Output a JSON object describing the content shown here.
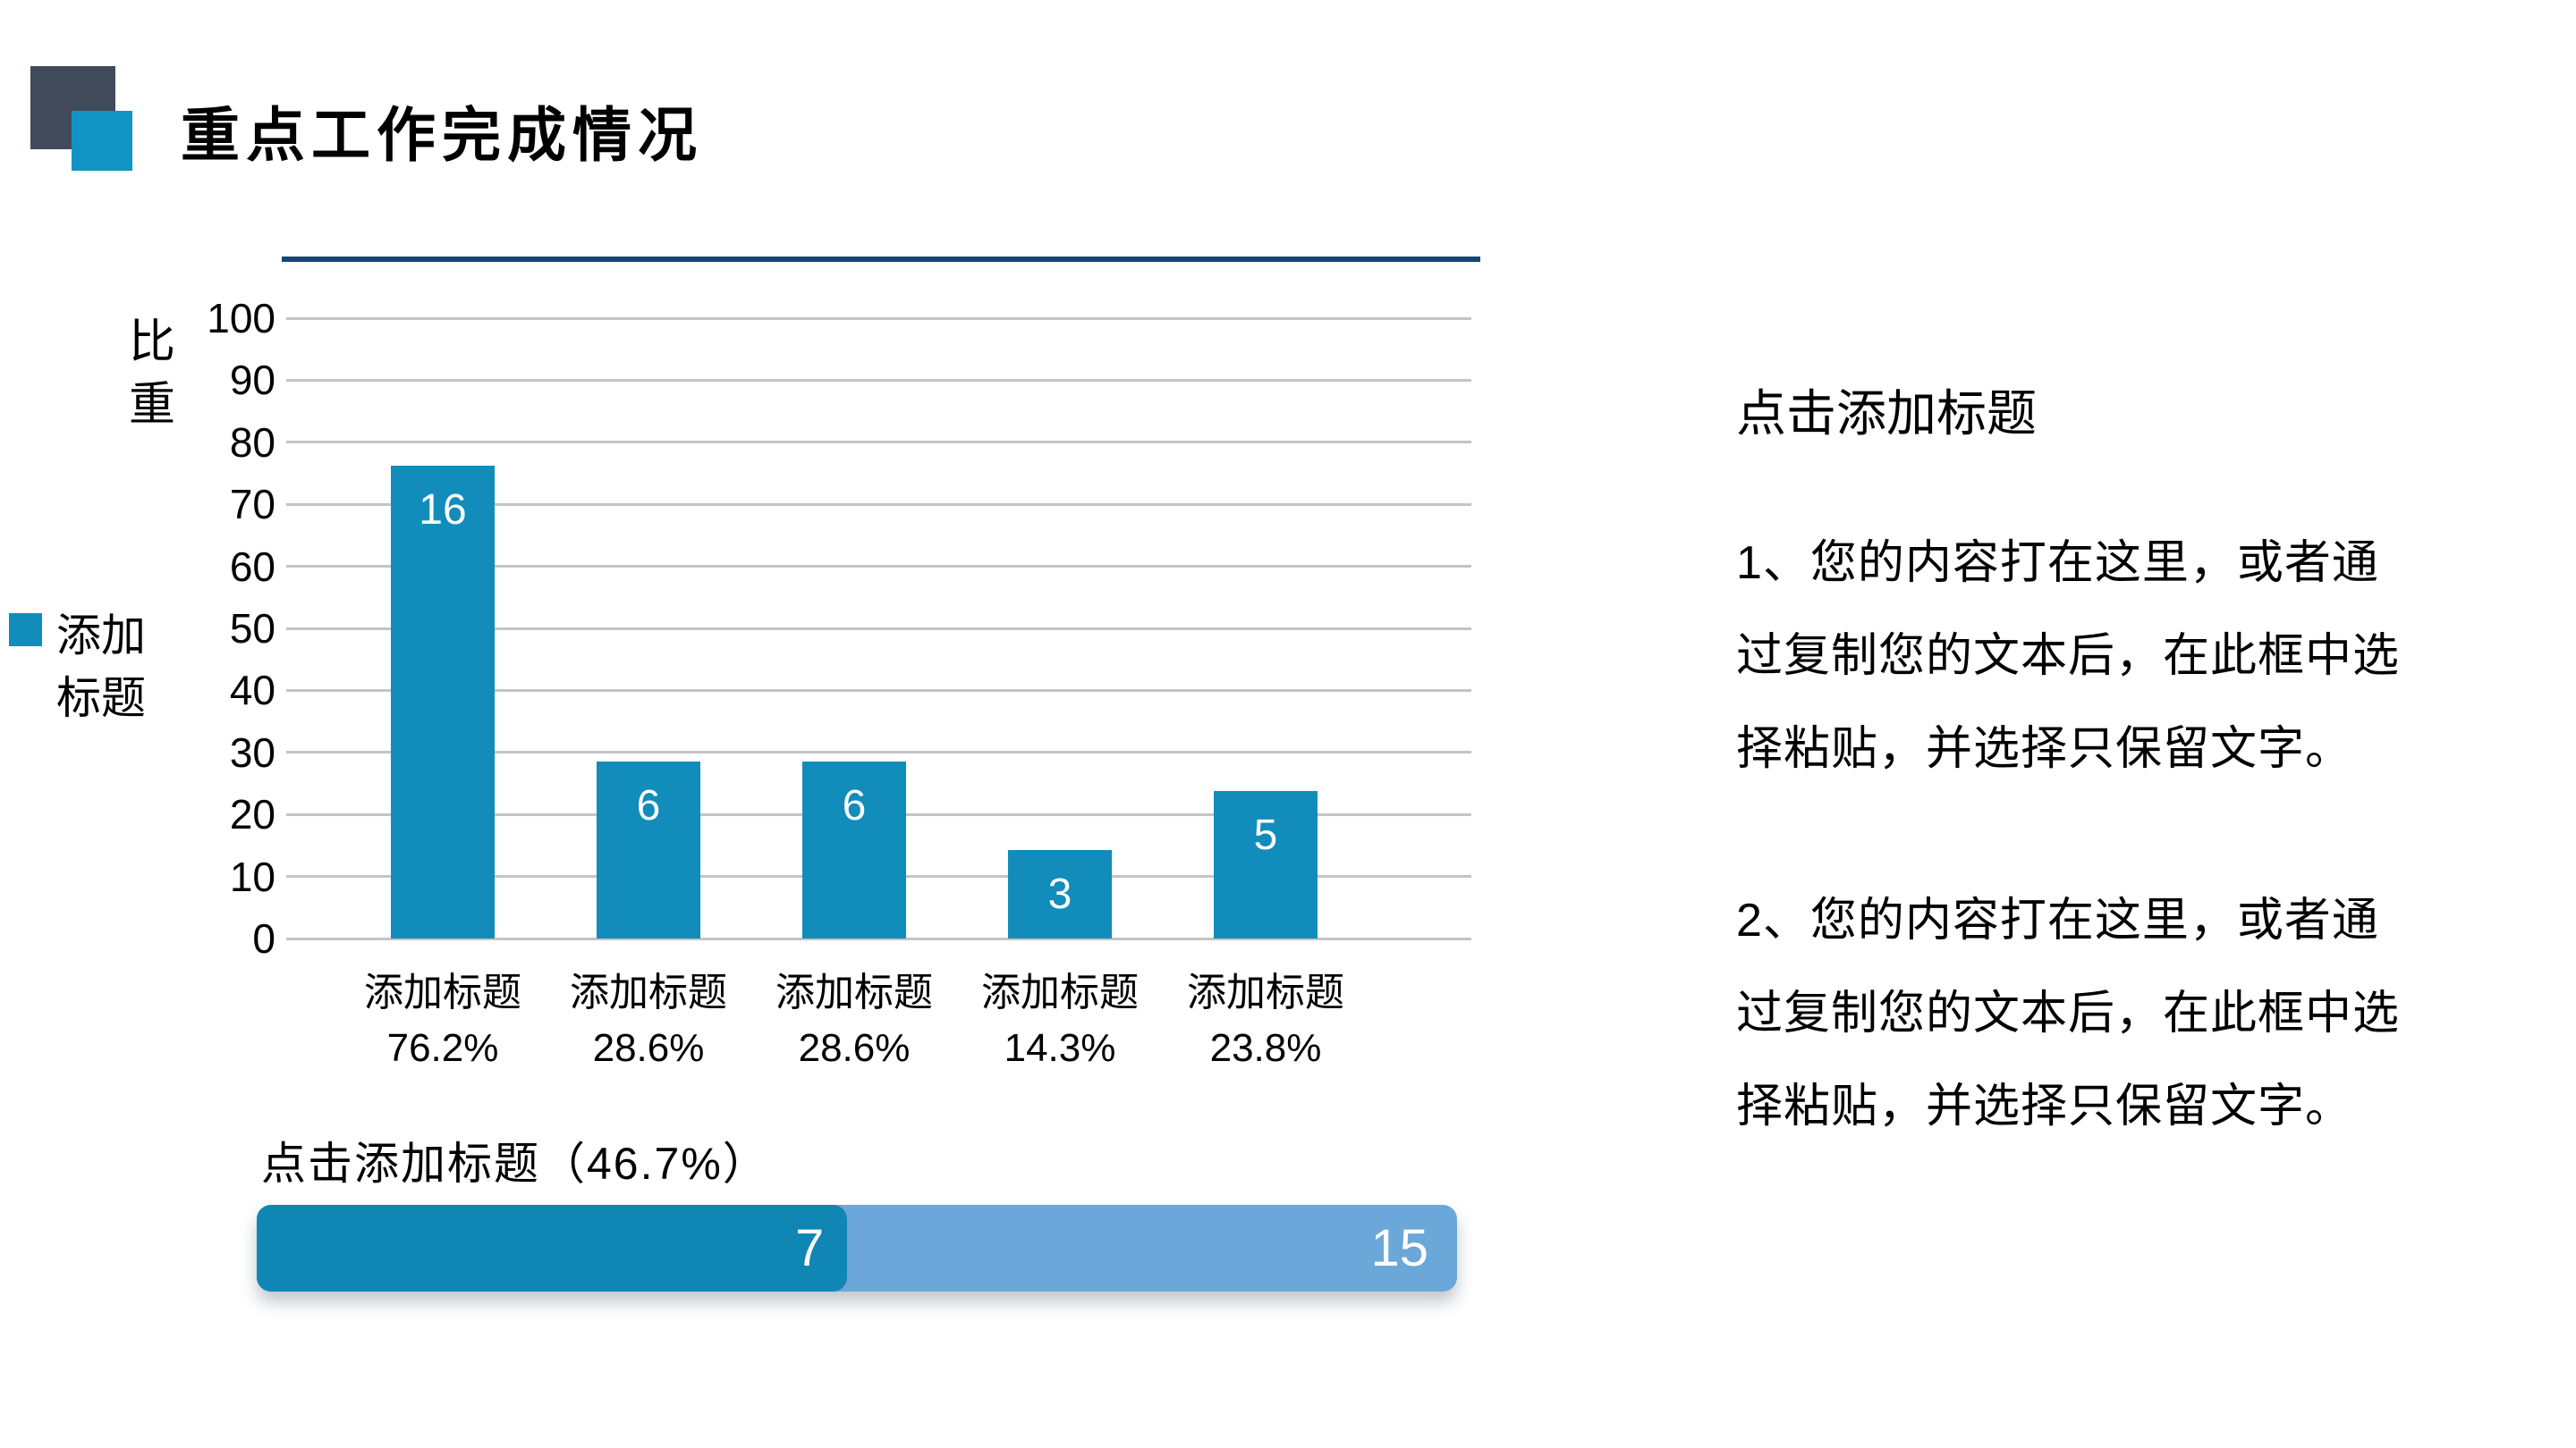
{
  "header": {
    "title": "重点工作完成情况"
  },
  "colors": {
    "accent_square_back": "#414A5B",
    "accent_square_front": "#1094C4",
    "divider_navy": "#17476E",
    "bar_teal": "#118CBB",
    "progress_dark": "#0F86B4",
    "progress_light": "#6BA7D8",
    "gridline": "#C4C4C4",
    "text": "#000000"
  },
  "chart_data": {
    "type": "bar",
    "title": "",
    "xlabel": "",
    "ylabel": "比重",
    "ylim": [
      0,
      100
    ],
    "yticks": [
      0,
      10,
      20,
      30,
      40,
      50,
      60,
      70,
      80,
      90,
      100
    ],
    "grid": true,
    "legend_position": "left",
    "legend_label": "添加\n标题",
    "categories": [
      "添加标题",
      "添加标题",
      "添加标题",
      "添加标题",
      "添加标题"
    ],
    "category_percent_labels": [
      "76.2%",
      "28.6%",
      "28.6%",
      "14.3%",
      "23.8%"
    ],
    "series": [
      {
        "name": "添加标题",
        "values": [
          16,
          6,
          6,
          3,
          5
        ],
        "bar_labels": [
          "16",
          "6",
          "6",
          "3",
          "5"
        ],
        "heights_pct": [
          76.2,
          28.6,
          28.6,
          14.3,
          23.8
        ]
      }
    ]
  },
  "progress": {
    "title": "点击添加标题（46.7%）",
    "percent_label": "46.7%",
    "segments": [
      {
        "label": "7",
        "value": 7,
        "color": "#0F86B4",
        "width_pct": 49.2
      },
      {
        "label": "15",
        "value": 15,
        "color": "#6BA7D8",
        "width_pct": 100
      }
    ]
  },
  "right_panel": {
    "heading": "点击添加标题",
    "paragraphs": [
      "1、您的内容打在这里，或者通\n过复制您的文本后，在此框中选\n择粘贴，并选择只保留文字。",
      "2、您的内容打在这里，或者通\n过复制您的文本后，在此框中选\n择粘贴，并选择只保留文字。"
    ]
  }
}
